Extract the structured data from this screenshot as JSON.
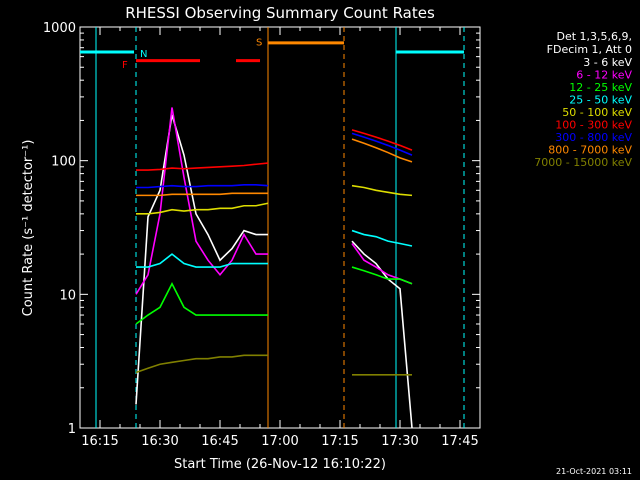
{
  "chart_data": {
    "type": "line",
    "title": "RHESSI Observing Summary Count Rates",
    "xlabel": "Start Time (26-Nov-12 16:10:22)",
    "ylabel": "Count Rate (s⁻¹ detector⁻¹)",
    "y_scale": "log",
    "ylim": [
      1,
      1000
    ],
    "xlim": [
      "16:10",
      "17:50"
    ],
    "x_ticks": [
      "16:15",
      "16:30",
      "16:45",
      "17:00",
      "17:15",
      "17:30",
      "17:45"
    ],
    "y_ticks": [
      "1",
      "10",
      "100",
      "1000"
    ],
    "grid": false,
    "legend_header": [
      "Det 1,3,5,6,9,",
      "FDecim 1, Att 0"
    ],
    "legend_position": "top-right",
    "annotations": {
      "night_start": "16:14",
      "night_end": "16:24",
      "night_start_2": "17:29",
      "night_end_2": "17:46",
      "N_marker_times": [
        "16:24",
        "17:46"
      ],
      "N_label": "N",
      "F_label": "F",
      "F_bars": [
        [
          "16:24",
          "16:40"
        ],
        [
          "16:49",
          "16:55"
        ]
      ],
      "S_label": "S",
      "S_start": "16:57",
      "S_end": "17:16",
      "saa_dashed_end": "17:16"
    },
    "x_times": [
      "16:24",
      "16:27",
      "16:30",
      "16:33",
      "16:36",
      "16:39",
      "16:42",
      "16:45",
      "16:48",
      "16:51",
      "16:54",
      "16:57"
    ],
    "x_times_2": [
      "17:18",
      "17:21",
      "17:24",
      "17:27",
      "17:30",
      "17:33"
    ],
    "series": [
      {
        "name": "3 - 6 keV",
        "color": "#ffffff",
        "values": [
          1.5,
          38,
          60,
          220,
          110,
          40,
          28,
          18,
          22,
          30,
          28,
          28
        ],
        "values_2": [
          25,
          20,
          17,
          13,
          11,
          1
        ]
      },
      {
        "name": "6 - 12 keV",
        "color": "#ff00ff",
        "values": [
          10,
          14,
          40,
          250,
          75,
          25,
          18,
          14,
          18,
          28,
          20,
          20
        ],
        "values_2": [
          24,
          18,
          16,
          14,
          13,
          12
        ]
      },
      {
        "name": "12 - 25 keV",
        "color": "#00ff00",
        "values": [
          6,
          7,
          8,
          12,
          8,
          7,
          7,
          7,
          7,
          7,
          7,
          7
        ],
        "values_2": [
          16,
          15,
          14,
          13,
          13,
          12
        ]
      },
      {
        "name": "25 - 50 keV",
        "color": "#00ffff",
        "values": [
          16,
          16,
          17,
          20,
          17,
          16,
          16,
          16,
          17,
          17,
          17,
          17
        ],
        "values_2": [
          30,
          28,
          27,
          25,
          24,
          23
        ]
      },
      {
        "name": "50 - 100 keV",
        "color": "#dddd00",
        "values": [
          40,
          40,
          41,
          43,
          42,
          43,
          43,
          44,
          44,
          46,
          46,
          48
        ],
        "values_2": [
          65,
          63,
          60,
          58,
          56,
          55
        ]
      },
      {
        "name": "100 - 300 keV",
        "color": "#ff0000",
        "values": [
          85,
          85,
          86,
          88,
          87,
          88,
          89,
          90,
          91,
          92,
          94,
          96
        ],
        "values_2": [
          170,
          160,
          150,
          140,
          130,
          120
        ]
      },
      {
        "name": "300 - 800 keV",
        "color": "#0000ff",
        "values": [
          63,
          63,
          64,
          65,
          64,
          64,
          65,
          65,
          65,
          66,
          66,
          65
        ],
        "values_2": [
          160,
          150,
          140,
          130,
          120,
          110
        ]
      },
      {
        "name": "800 - 7000 keV",
        "color": "#ff8800",
        "values": [
          55,
          55,
          55,
          56,
          56,
          56,
          56,
          56,
          57,
          57,
          57,
          57
        ],
        "values_2": [
          145,
          135,
          125,
          115,
          105,
          98
        ]
      },
      {
        "name": "7000 - 15000 keV",
        "color": "#808000",
        "values": [
          2.6,
          2.8,
          3.0,
          3.1,
          3.2,
          3.3,
          3.3,
          3.4,
          3.4,
          3.5,
          3.5,
          3.5
        ],
        "values_2": [
          2.5,
          2.5,
          2.5,
          2.5,
          2.5,
          2.5
        ]
      }
    ],
    "footer_date": "21-Oct-2021 03:11"
  }
}
